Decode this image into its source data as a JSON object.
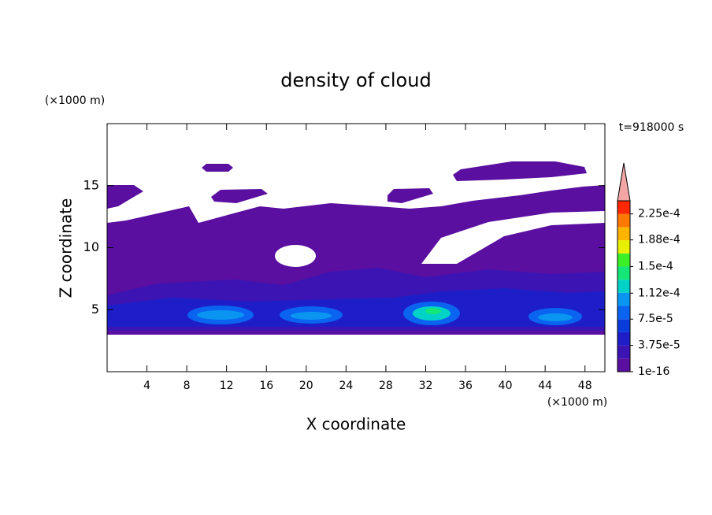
{
  "chart_data": {
    "type": "contour",
    "title": "density of cloud",
    "xlabel": "X coordinate",
    "ylabel": "Z coordinate",
    "x_unit": "(×1000 m)",
    "y_unit": "(×1000 m)",
    "annotation": "t=918000 s",
    "xlim": [
      0,
      50
    ],
    "ylim": [
      0,
      20
    ],
    "xticks": [
      4,
      8,
      12,
      16,
      20,
      24,
      28,
      32,
      36,
      40,
      44,
      48
    ],
    "yticks": [
      5,
      10,
      15
    ],
    "colorbar": {
      "lim": [
        0,
        0.00024375
      ],
      "ticks": [
        {
          "value": 1e-16,
          "label": "1e-16"
        },
        {
          "value": 3.75e-05,
          "label": "3.75e-5"
        },
        {
          "value": 7.5e-05,
          "label": "7.5e-5"
        },
        {
          "value": 0.000112,
          "label": "1.12e-4"
        },
        {
          "value": 0.00015,
          "label": "1.5e-4"
        },
        {
          "value": 0.000188,
          "label": "1.88e-4"
        },
        {
          "value": 0.000225,
          "label": "2.25e-4"
        }
      ],
      "colors": [
        "#5a0fa0",
        "#3c14b4",
        "#1e1ec8",
        "#0a3cdc",
        "#0a64f0",
        "#0a96f0",
        "#00d2c8",
        "#14e678",
        "#3cf028",
        "#e6f000",
        "#ffb400",
        "#ff7800",
        "#ff2800"
      ],
      "extend_color": "#f4a6a6"
    }
  }
}
